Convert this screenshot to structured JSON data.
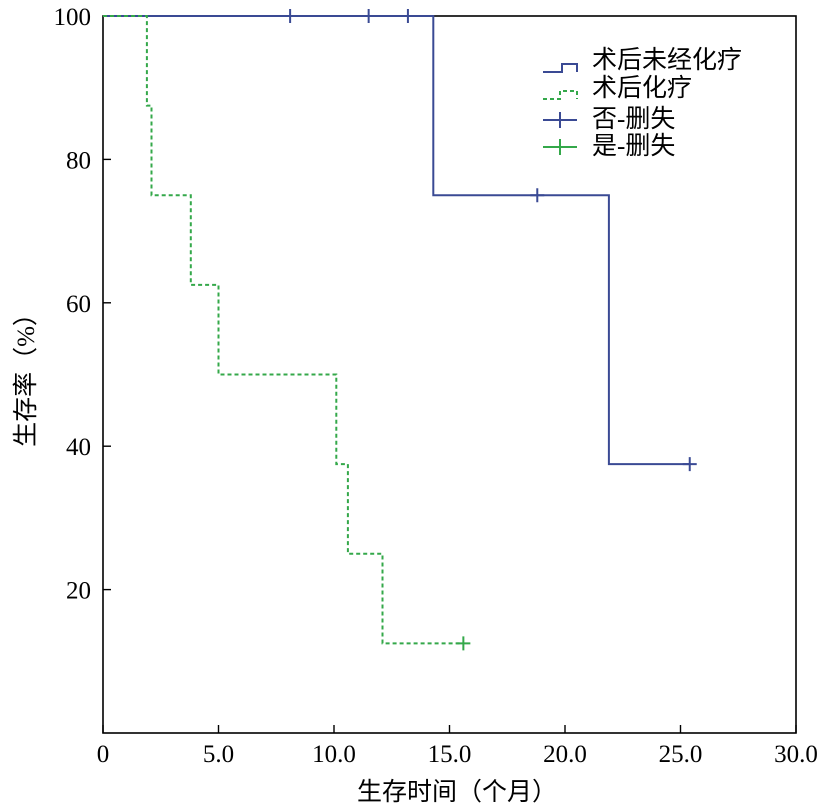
{
  "chart_data": {
    "type": "line",
    "subtype": "kaplan-meier step",
    "xlabel": "生存时间（个月）",
    "ylabel": "生存率（%）",
    "xlim": [
      0,
      30
    ],
    "ylim": [
      0,
      100
    ],
    "x_ticks": [
      0,
      5,
      10,
      15,
      20,
      25,
      30
    ],
    "x_tick_labels": [
      "0",
      "5.0",
      "10.0",
      "15.0",
      "20.0",
      "25.0",
      "30.0"
    ],
    "y_ticks": [
      20,
      40,
      60,
      80,
      100
    ],
    "y_tick_labels": [
      "20",
      "40",
      "60",
      "80",
      "100"
    ],
    "grid": false,
    "legend_position": "top-right",
    "legend": [
      "术后未经化疗",
      "术后化疗",
      "否-删失",
      "是-删失"
    ],
    "series": [
      {
        "name": "术后未经化疗",
        "color": "#3a4a94",
        "dash": "solid",
        "steps": [
          [
            0,
            100
          ],
          [
            14.3,
            100
          ],
          [
            14.3,
            75
          ],
          [
            21.9,
            75
          ],
          [
            21.9,
            37.5
          ],
          [
            25.4,
            37.5
          ]
        ],
        "censored": [
          [
            8.1,
            100
          ],
          [
            11.5,
            100
          ],
          [
            13.2,
            100
          ],
          [
            18.8,
            75
          ],
          [
            25.4,
            37.5
          ]
        ]
      },
      {
        "name": "术后化疗",
        "color": "#34a84a",
        "dash": "dashed",
        "steps": [
          [
            0,
            100
          ],
          [
            1.9,
            100
          ],
          [
            1.9,
            87.5
          ],
          [
            2.1,
            87.5
          ],
          [
            2.1,
            75
          ],
          [
            3.8,
            75
          ],
          [
            3.8,
            62.5
          ],
          [
            5.0,
            62.5
          ],
          [
            5.0,
            50
          ],
          [
            10.1,
            50
          ],
          [
            10.1,
            37.5
          ],
          [
            10.6,
            37.5
          ],
          [
            10.6,
            25
          ],
          [
            12.1,
            25
          ],
          [
            12.1,
            12.5
          ],
          [
            15.6,
            12.5
          ]
        ],
        "censored": [
          [
            15.6,
            12.5
          ]
        ]
      }
    ]
  }
}
